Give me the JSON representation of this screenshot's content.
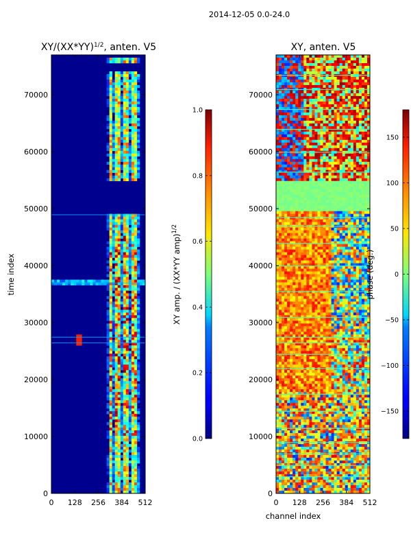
{
  "figure": {
    "suptitle": "2014-12-05 0.0-24.0"
  },
  "chart_data": [
    {
      "type": "heatmap",
      "title": "XY/(XX*YY)",
      "title_exp": "1/2",
      "title_suffix": ", anten. V5",
      "xlabel": "",
      "ylabel": "time index",
      "xlim": [
        0,
        512
      ],
      "ylim": [
        0,
        77000
      ],
      "xticks": [
        0,
        128,
        256,
        384,
        512
      ],
      "yticks": [
        0,
        10000,
        20000,
        30000,
        40000,
        50000,
        60000,
        70000
      ],
      "colormap": "jet",
      "colorbar": {
        "label": "XY amp. / (XX*YY amp)",
        "label_exp": "1/2",
        "range": [
          0.0,
          1.0
        ],
        "ticks": [
          "0.0",
          "0.2",
          "0.4",
          "0.6",
          "0.8",
          "1.0"
        ],
        "tick_values": [
          0.0,
          0.2,
          0.4,
          0.6,
          0.8,
          1.0
        ]
      }
    },
    {
      "type": "heatmap",
      "title": "XY, anten. V5",
      "xlabel": "channel index",
      "ylabel": "",
      "xlim": [
        0,
        512
      ],
      "ylim": [
        0,
        77000
      ],
      "xticks": [
        0,
        128,
        256,
        384,
        512
      ],
      "yticks": [
        0,
        10000,
        20000,
        30000,
        40000,
        50000,
        60000,
        70000
      ],
      "colormap": "jet",
      "colorbar": {
        "label": "phase (deg.)",
        "range": [
          -180,
          180
        ],
        "ticks": [
          "−150",
          "−100",
          "−50",
          "0",
          "50",
          "100",
          "150"
        ],
        "tick_values": [
          -150,
          -100,
          -50,
          0,
          50,
          100,
          150
        ]
      }
    }
  ]
}
